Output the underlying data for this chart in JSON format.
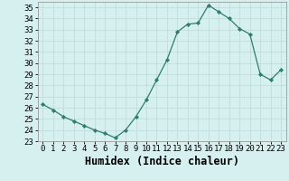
{
  "xlabel": "Humidex (Indice chaleur)",
  "x": [
    0,
    1,
    2,
    3,
    4,
    5,
    6,
    7,
    8,
    9,
    10,
    11,
    12,
    13,
    14,
    15,
    16,
    17,
    18,
    19,
    20,
    21,
    22,
    23
  ],
  "y": [
    26.3,
    25.8,
    25.2,
    24.8,
    24.4,
    24.0,
    23.7,
    23.3,
    24.0,
    25.2,
    26.7,
    28.5,
    30.3,
    32.8,
    33.5,
    33.6,
    35.2,
    34.6,
    34.0,
    33.1,
    32.6,
    29.0,
    28.5,
    29.4
  ],
  "line_color": "#2e7d6e",
  "marker": "D",
  "marker_size": 2.2,
  "bg_color": "#d6f0f0",
  "grid_color": "#c0dcdc",
  "ylim": [
    23,
    35.5
  ],
  "yticks": [
    23,
    24,
    25,
    26,
    27,
    28,
    29,
    30,
    31,
    32,
    33,
    34,
    35
  ],
  "xlim": [
    -0.5,
    23.5
  ],
  "xticks": [
    0,
    1,
    2,
    3,
    4,
    5,
    6,
    7,
    8,
    9,
    10,
    11,
    12,
    13,
    14,
    15,
    16,
    17,
    18,
    19,
    20,
    21,
    22,
    23
  ],
  "tick_fontsize": 6.5,
  "xlabel_fontsize": 8.5
}
